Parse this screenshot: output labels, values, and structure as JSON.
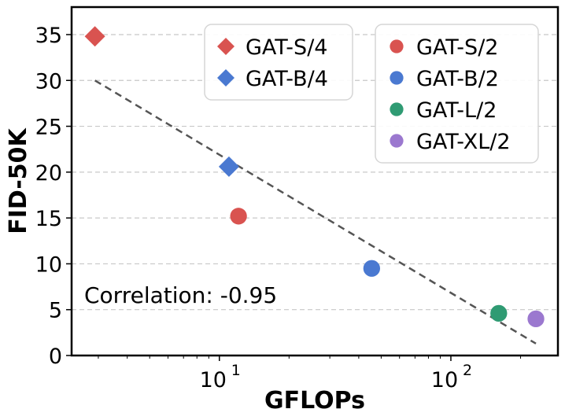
{
  "chart_data": {
    "type": "scatter",
    "title": "",
    "xlabel": "GFLOPs",
    "ylabel": "FID-50K",
    "xscale": "log",
    "xlim": [
      2.3,
      290
    ],
    "ylim": [
      0,
      38
    ],
    "x_ticks": [
      {
        "value": 10,
        "base": "10",
        "exp": "1"
      },
      {
        "value": 100,
        "base": "10",
        "exp": "2"
      }
    ],
    "y_ticks": [
      0,
      5,
      10,
      15,
      20,
      25,
      30,
      35
    ],
    "grid": "horizontal-dashed",
    "series": [
      {
        "name": "GAT-S/4",
        "marker": "diamond",
        "color": "#d95350",
        "x": 2.9,
        "y": 34.8,
        "legend": "left"
      },
      {
        "name": "GAT-B/4",
        "marker": "diamond",
        "color": "#4a79d1",
        "x": 11.0,
        "y": 20.6,
        "legend": "left"
      },
      {
        "name": "GAT-S/2",
        "marker": "circle",
        "color": "#d95350",
        "x": 12.1,
        "y": 15.2,
        "legend": "right"
      },
      {
        "name": "GAT-B/2",
        "marker": "circle",
        "color": "#4a79d1",
        "x": 45.5,
        "y": 9.5,
        "legend": "right"
      },
      {
        "name": "GAT-L/2",
        "marker": "circle",
        "color": "#2f9b73",
        "x": 161,
        "y": 4.6,
        "legend": "right"
      },
      {
        "name": "GAT-XL/2",
        "marker": "circle",
        "color": "#9b78cf",
        "x": 233,
        "y": 4.0,
        "legend": "right"
      }
    ],
    "trendline": {
      "x1": 2.9,
      "y1": 30.0,
      "x2": 233,
      "y2": 1.3,
      "style": "dashed",
      "color": "#555555"
    },
    "annotation": "Correlation: -0.95"
  }
}
